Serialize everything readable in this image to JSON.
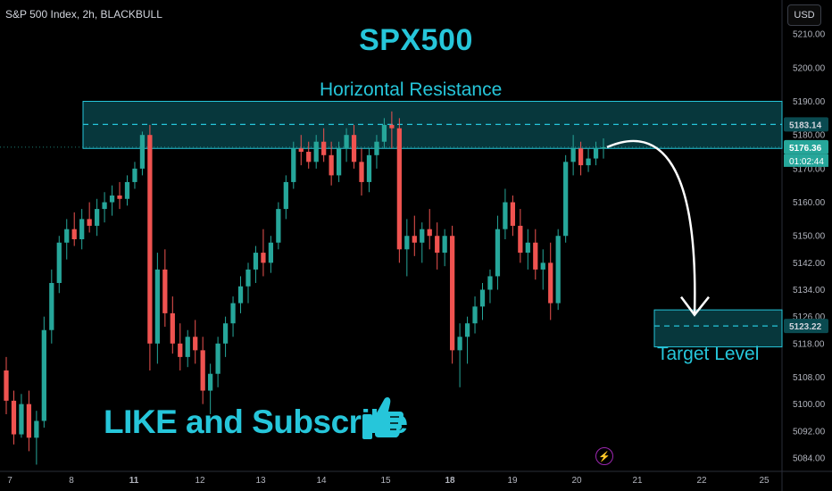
{
  "header": {
    "symbol_info": "S&P 500 Index, 2h, BLACKBULL",
    "currency_button": "USD"
  },
  "annotations": {
    "title": "SPX500",
    "resistance_label": "Horizontal Resistance",
    "target_label": "Target Level",
    "cta": "LIKE and Subscribe",
    "thumbs_icon": "thumbs-up-icon",
    "bolt_icon": "lightning-icon"
  },
  "colors": {
    "up": "#26a69a",
    "down": "#ef5350",
    "accent": "#26c6da",
    "zone_fill": "#0a4a50",
    "zone_border": "#26c6da",
    "background": "#000000"
  },
  "chart_data": {
    "type": "candlestick",
    "title": "SPX500",
    "ylim": [
      5080,
      5218
    ],
    "y_ticks": [
      5210,
      5200,
      5190,
      5180,
      5170,
      5160,
      5150,
      5142,
      5134,
      5126,
      5118,
      5108,
      5100,
      5092,
      5084
    ],
    "x_ticks": [
      "7",
      "8",
      "11",
      "12",
      "13",
      "14",
      "15",
      "18",
      "19",
      "20",
      "21",
      "22",
      "25"
    ],
    "resistance_zone": {
      "low": 5176,
      "high": 5190,
      "level": 5183.14,
      "level_label": "5183.14"
    },
    "target_zone": {
      "low": 5117,
      "high": 5128,
      "level": 5123.22,
      "level_label": "5123.22"
    },
    "current_price": {
      "value": 5176.36,
      "label": "5176.36",
      "countdown": "01:02:44"
    },
    "projection": {
      "from": 5176.36,
      "to": 5126,
      "direction": "down"
    },
    "candles": [
      [
        5110,
        5114,
        5097,
        5101
      ],
      [
        5101,
        5104,
        5088,
        5091
      ],
      [
        5091,
        5103,
        5090,
        5100
      ],
      [
        5100,
        5104,
        5086,
        5090
      ],
      [
        5090,
        5098,
        5082,
        5095
      ],
      [
        5095,
        5126,
        5093,
        5122
      ],
      [
        5122,
        5140,
        5118,
        5136
      ],
      [
        5136,
        5150,
        5133,
        5148
      ],
      [
        5148,
        5155,
        5143,
        5152
      ],
      [
        5152,
        5157,
        5147,
        5149
      ],
      [
        5149,
        5158,
        5146,
        5155
      ],
      [
        5155,
        5160,
        5151,
        5153
      ],
      [
        5153,
        5161,
        5150,
        5158
      ],
      [
        5158,
        5163,
        5154,
        5160
      ],
      [
        5160,
        5165,
        5156,
        5162
      ],
      [
        5162,
        5166,
        5158,
        5161
      ],
      [
        5161,
        5168,
        5159,
        5166
      ],
      [
        5166,
        5172,
        5164,
        5170
      ],
      [
        5170,
        5181,
        5168,
        5180
      ],
      [
        5180,
        5183,
        5110,
        5118
      ],
      [
        5118,
        5145,
        5112,
        5140
      ],
      [
        5140,
        5146,
        5123,
        5127
      ],
      [
        5127,
        5132,
        5115,
        5118
      ],
      [
        5118,
        5124,
        5110,
        5114
      ],
      [
        5114,
        5122,
        5111,
        5120
      ],
      [
        5120,
        5125,
        5112,
        5116
      ],
      [
        5116,
        5120,
        5100,
        5104
      ],
      [
        5104,
        5112,
        5097,
        5109
      ],
      [
        5109,
        5120,
        5105,
        5118
      ],
      [
        5118,
        5126,
        5114,
        5124
      ],
      [
        5124,
        5132,
        5120,
        5130
      ],
      [
        5130,
        5138,
        5127,
        5135
      ],
      [
        5135,
        5142,
        5130,
        5140
      ],
      [
        5140,
        5147,
        5136,
        5145
      ],
      [
        5145,
        5152,
        5138,
        5142
      ],
      [
        5142,
        5150,
        5139,
        5148
      ],
      [
        5148,
        5160,
        5146,
        5158
      ],
      [
        5158,
        5168,
        5155,
        5166
      ],
      [
        5166,
        5178,
        5164,
        5176
      ],
      [
        5176,
        5180,
        5171,
        5175
      ],
      [
        5175,
        5178,
        5170,
        5172
      ],
      [
        5172,
        5180,
        5170,
        5178
      ],
      [
        5178,
        5182,
        5172,
        5174
      ],
      [
        5174,
        5178,
        5165,
        5168
      ],
      [
        5168,
        5178,
        5166,
        5176
      ],
      [
        5176,
        5182,
        5172,
        5180
      ],
      [
        5180,
        5183,
        5170,
        5172
      ],
      [
        5172,
        5176,
        5162,
        5166
      ],
      [
        5166,
        5176,
        5163,
        5174
      ],
      [
        5174,
        5180,
        5170,
        5178
      ],
      [
        5178,
        5185,
        5176,
        5183
      ],
      [
        5183,
        5187,
        5176,
        5182
      ],
      [
        5182,
        5185,
        5142,
        5146
      ],
      [
        5146,
        5155,
        5138,
        5150
      ],
      [
        5150,
        5156,
        5144,
        5148
      ],
      [
        5148,
        5154,
        5142,
        5152
      ],
      [
        5152,
        5158,
        5146,
        5150
      ],
      [
        5150,
        5154,
        5140,
        5145
      ],
      [
        5145,
        5152,
        5141,
        5150
      ],
      [
        5150,
        5153,
        5112,
        5116
      ],
      [
        5116,
        5124,
        5105,
        5120
      ],
      [
        5120,
        5126,
        5112,
        5124
      ],
      [
        5124,
        5132,
        5121,
        5129
      ],
      [
        5129,
        5136,
        5125,
        5134
      ],
      [
        5134,
        5140,
        5130,
        5138
      ],
      [
        5138,
        5156,
        5134,
        5152
      ],
      [
        5152,
        5164,
        5149,
        5160
      ],
      [
        5160,
        5162,
        5150,
        5153
      ],
      [
        5153,
        5158,
        5142,
        5145
      ],
      [
        5145,
        5152,
        5140,
        5148
      ],
      [
        5148,
        5152,
        5137,
        5140
      ],
      [
        5140,
        5146,
        5134,
        5142
      ],
      [
        5142,
        5148,
        5125,
        5130
      ],
      [
        5130,
        5152,
        5128,
        5150
      ],
      [
        5150,
        5174,
        5148,
        5172
      ],
      [
        5172,
        5180,
        5168,
        5176
      ],
      [
        5176,
        5178,
        5168,
        5171
      ],
      [
        5171,
        5176,
        5169,
        5173
      ],
      [
        5173,
        5178,
        5171,
        5176
      ],
      [
        5176,
        5179,
        5173,
        5176.36
      ]
    ]
  }
}
